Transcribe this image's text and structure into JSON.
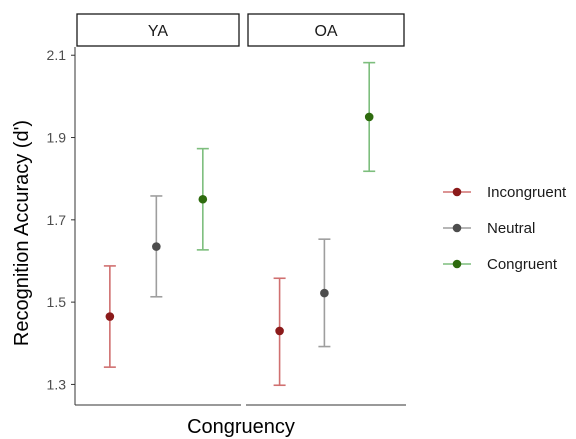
{
  "chart_data": {
    "type": "scatter",
    "subtype": "faceted point-range (mean with error bars)",
    "xlabel": "Congruency",
    "ylabel": "Recognition Accuracy (d')",
    "ylim": [
      1.25,
      2.12
    ],
    "yticks": [
      1.3,
      1.5,
      1.7,
      1.9,
      2.1
    ],
    "ytick_labels": [
      "1.3",
      "1.5",
      "1.7",
      "1.9",
      "2.1"
    ],
    "grid": false,
    "legend_position": "right",
    "categories": [
      "Incongruent",
      "Neutral",
      "Congruent"
    ],
    "colors": {
      "Incongruent": "#8B1A1A",
      "Neutral": "#4D4D4D",
      "Congruent": "#2E6B0E"
    },
    "error_bar_colors": {
      "Incongruent": "#D07070",
      "Neutral": "#9E9E9E",
      "Congruent": "#7DBE7D"
    },
    "facets": [
      {
        "label": "YA",
        "points": [
          {
            "category": "Incongruent",
            "mean": 1.465,
            "lower": 1.342,
            "upper": 1.588
          },
          {
            "category": "Neutral",
            "mean": 1.635,
            "lower": 1.513,
            "upper": 1.758
          },
          {
            "category": "Congruent",
            "mean": 1.75,
            "lower": 1.627,
            "upper": 1.873
          }
        ]
      },
      {
        "label": "OA",
        "points": [
          {
            "category": "Incongruent",
            "mean": 1.43,
            "lower": 1.298,
            "upper": 1.558
          },
          {
            "category": "Neutral",
            "mean": 1.522,
            "lower": 1.392,
            "upper": 1.653
          },
          {
            "category": "Congruent",
            "mean": 1.95,
            "lower": 1.818,
            "upper": 2.082
          }
        ]
      }
    ]
  }
}
